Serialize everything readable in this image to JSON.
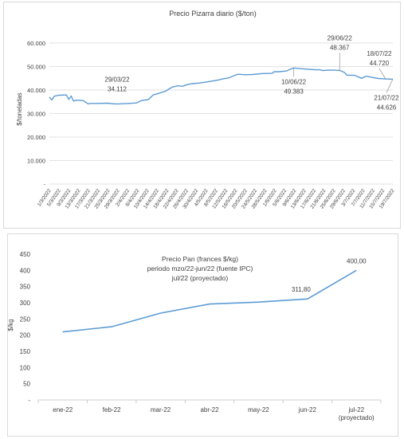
{
  "colors": {
    "line": "#5b9bd5",
    "grid": "#d9d9d9",
    "axis": "#bfbfbf",
    "text": "#404040"
  },
  "chart_data": [
    {
      "type": "line",
      "title": "Precio Pizarra diario ($/ton)",
      "ylabel": "$/toneladas",
      "xlabel": "",
      "ylim": [
        0,
        60000
      ],
      "grid": true,
      "legend": "none",
      "yticks": [
        {
          "value": 0,
          "label": "-"
        },
        {
          "value": 10000,
          "label": "10.000"
        },
        {
          "value": 20000,
          "label": "20.000"
        },
        {
          "value": 30000,
          "label": "30.000"
        },
        {
          "value": 40000,
          "label": "40.000"
        },
        {
          "value": 50000,
          "label": "50.000"
        },
        {
          "value": 60000,
          "label": "60.000"
        }
      ],
      "xticks": [
        "1/3/2022",
        "5/3/2022",
        "9/3/2022",
        "13/3/2022",
        "17/3/2022",
        "21/3/2022",
        "25/3/2022",
        "29/3/2022",
        "2/4/2022",
        "6/4/2022",
        "10/4/2022",
        "14/4/2022",
        "18/4/2022",
        "22/4/2022",
        "26/4/2022",
        "30/4/2022",
        "4/5/2022",
        "8/5/2022",
        "12/5/2022",
        "16/5/2022",
        "20/5/2022",
        "24/5/2022",
        "28/5/2022",
        "1/6/2022",
        "5/6/2022",
        "9/6/2022",
        "13/6/2022",
        "17/6/2022",
        "21/6/2022",
        "25/6/2022",
        "29/6/2022",
        "3/7/2022",
        "7/7/2022",
        "11/7/2022",
        "15/7/2022",
        "19/7/2022"
      ],
      "x": [
        "2022-03-01",
        "2022-03-02",
        "2022-03-03",
        "2022-03-05",
        "2022-03-08",
        "2022-03-09",
        "2022-03-10",
        "2022-03-11",
        "2022-03-12",
        "2022-03-15",
        "2022-03-17",
        "2022-03-18",
        "2022-03-21",
        "2022-03-25",
        "2022-03-28",
        "2022-03-29",
        "2022-03-30",
        "2022-04-03",
        "2022-04-06",
        "2022-04-08",
        "2022-04-11",
        "2022-04-13",
        "2022-04-14",
        "2022-04-18",
        "2022-04-20",
        "2022-04-21",
        "2022-04-23",
        "2022-04-25",
        "2022-04-27",
        "2022-04-29",
        "2022-05-02",
        "2022-05-04",
        "2022-05-06",
        "2022-05-10",
        "2022-05-12",
        "2022-05-14",
        "2022-05-17",
        "2022-05-18",
        "2022-05-21",
        "2022-05-24",
        "2022-05-28",
        "2022-06-01",
        "2022-06-02",
        "2022-06-04",
        "2022-06-07",
        "2022-06-09",
        "2022-06-10",
        "2022-06-15",
        "2022-06-19",
        "2022-06-21",
        "2022-06-22",
        "2022-06-25",
        "2022-06-29",
        "2022-07-01",
        "2022-07-02",
        "2022-07-05",
        "2022-07-07",
        "2022-07-08",
        "2022-07-10",
        "2022-07-13",
        "2022-07-15",
        "2022-07-18",
        "2022-07-21"
      ],
      "series": [
        {
          "values": [
            37000,
            35800,
            37400,
            37800,
            37900,
            36100,
            37400,
            35300,
            35700,
            35500,
            34100,
            34300,
            34300,
            34400,
            34100,
            34112,
            34100,
            34300,
            34500,
            35500,
            36000,
            38000,
            38200,
            39500,
            40800,
            41300,
            41800,
            41600,
            42300,
            42700,
            43000,
            43300,
            43600,
            44300,
            44800,
            45100,
            46400,
            46700,
            46500,
            46600,
            47000,
            47100,
            47800,
            47800,
            48100,
            49000,
            49383,
            48900,
            48600,
            48600,
            48300,
            48500,
            48367,
            47500,
            46300,
            46300,
            45500,
            45000,
            45900,
            45300,
            44900,
            44720,
            44626
          ]
        }
      ],
      "annotations": [
        {
          "date": "2022-03-29",
          "date_label": "29/03/22",
          "value_label": "34.112",
          "y": 34112
        },
        {
          "date": "2022-06-10",
          "date_label": "10/06/22",
          "value_label": "49.383",
          "y": 49383
        },
        {
          "date": "2022-06-29",
          "date_label": "29/06/22",
          "value_label": "48.367",
          "y": 48367
        },
        {
          "date": "2022-07-18",
          "date_label": "18/07/22",
          "value_label": "44.720",
          "y": 44720
        },
        {
          "date": "2022-07-21",
          "date_label": "21/07/22",
          "value_label": "44.626",
          "y": 44626
        }
      ]
    },
    {
      "type": "line",
      "title_lines": [
        "Precio Pan  (frances $/kg)",
        "periodo mzo/22-jun/22 (fuente IPC)",
        "jul/22 (proyectado)"
      ],
      "ylabel": "$/kg",
      "xlabel": "",
      "ylim": [
        0,
        450
      ],
      "grid": false,
      "legend": "none",
      "yticks": [
        {
          "value": 0,
          "label": "-"
        },
        {
          "value": 50,
          "label": "50"
        },
        {
          "value": 100,
          "label": "100"
        },
        {
          "value": 150,
          "label": "150"
        },
        {
          "value": 200,
          "label": "200"
        },
        {
          "value": 250,
          "label": "250"
        },
        {
          "value": 300,
          "label": "300"
        },
        {
          "value": 350,
          "label": "350"
        },
        {
          "value": 400,
          "label": "400"
        },
        {
          "value": 450,
          "label": "450"
        }
      ],
      "categories": [
        "ene-22",
        "feb-22",
        "mar-22",
        "abr-22",
        "may-22",
        "jun-22",
        "jul-22"
      ],
      "category_sublabels": [
        "",
        "",
        "",
        "",
        "",
        "",
        "(proyectado)"
      ],
      "series": [
        {
          "values": [
            210,
            226,
            268,
            296,
            302,
            311.8,
            400
          ]
        }
      ],
      "data_labels": [
        {
          "index": 5,
          "label": "311,80"
        },
        {
          "index": 6,
          "label": "400,00"
        }
      ]
    }
  ]
}
